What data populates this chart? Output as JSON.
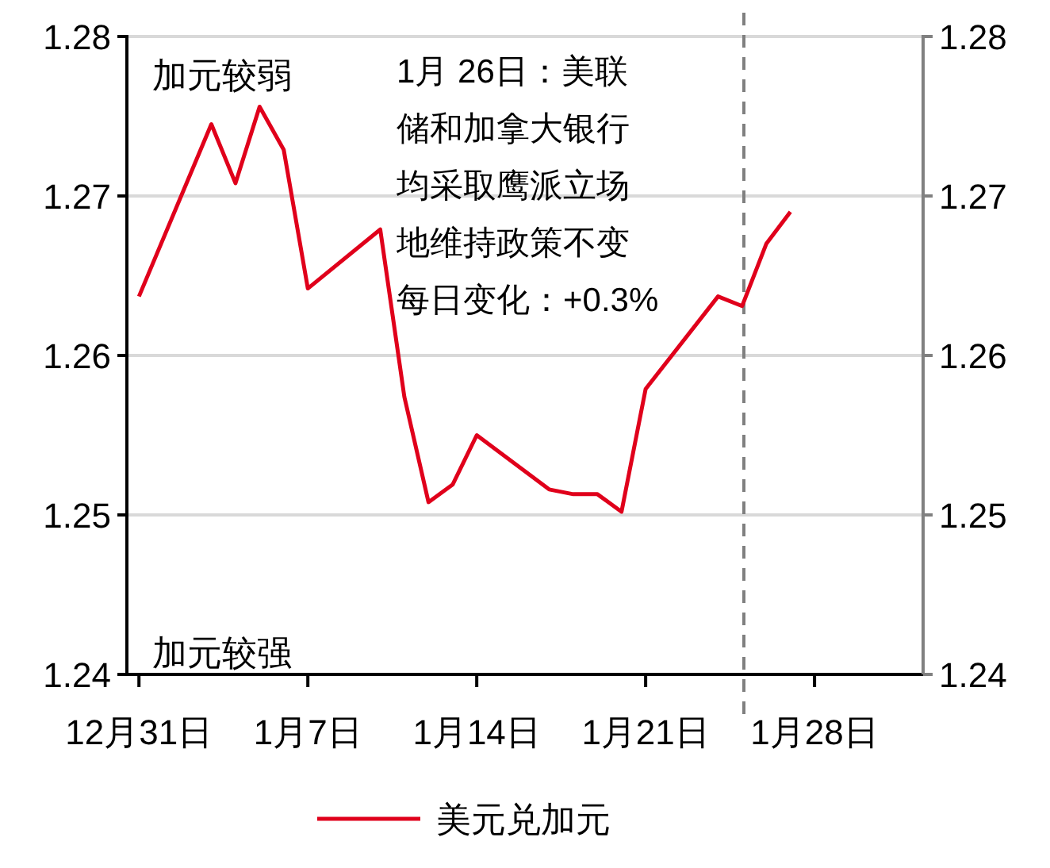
{
  "chart_data": {
    "type": "line",
    "categories": [
      "12月31日",
      null,
      null,
      null,
      null,
      null,
      null,
      "1月7日",
      null,
      null,
      null,
      null,
      null,
      null,
      "1月14日",
      null,
      null,
      null,
      null,
      null,
      null,
      "1月21日",
      null,
      null,
      null,
      null,
      null,
      null,
      "1月28日",
      null,
      null,
      null,
      null
    ],
    "series": [
      {
        "name": "美元兑加元",
        "color": "#e0001b",
        "values": [
          1.2637,
          null,
          null,
          1.2745,
          1.2708,
          1.2756,
          1.2729,
          1.2642,
          null,
          null,
          1.2679,
          1.2574,
          1.2508,
          1.2519,
          1.255,
          null,
          null,
          1.2516,
          1.2513,
          1.2513,
          1.2502,
          1.2579,
          null,
          null,
          1.2637,
          1.2631,
          1.267,
          1.269,
          null,
          null,
          null,
          null,
          null
        ]
      }
    ],
    "ylim": [
      1.24,
      1.28
    ],
    "yticks": [
      1.24,
      1.25,
      1.26,
      1.27,
      1.28
    ],
    "y2lim": [
      1.24,
      1.28
    ],
    "y2ticks": [
      1.24,
      1.25,
      1.26,
      1.27,
      1.28
    ],
    "grid": "y",
    "legend": "bottom",
    "marker": "none",
    "line_style": "solid",
    "annotations": [
      "加元较弱",
      "加元较强",
      "1月 26日：美联",
      "储和加拿大银行",
      "均采取鹰派立场",
      "地维持政策不变",
      "每日变化：+0.3%"
    ]
  }
}
